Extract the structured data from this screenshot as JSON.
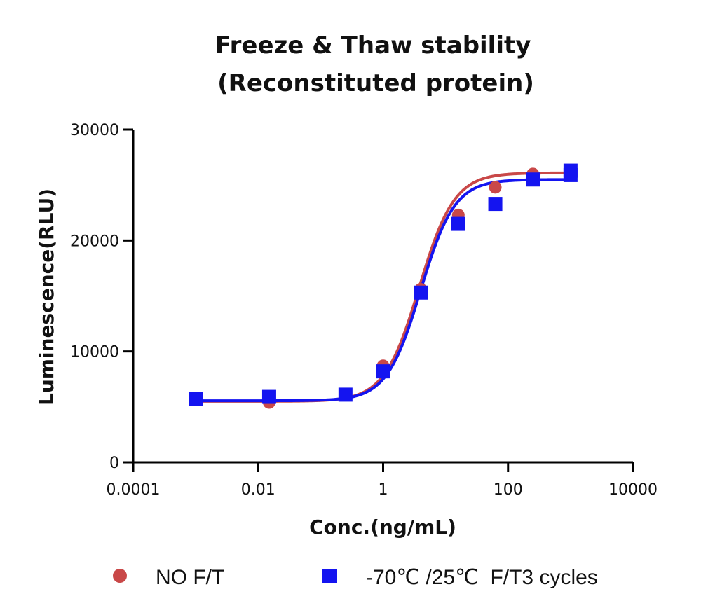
{
  "chart_data": {
    "type": "scatter",
    "title": [
      "Freeze & Thaw stability",
      "(Reconstituted protein)"
    ],
    "xlabel": "Conc.(ng/mL)",
    "ylabel": "Luminescence(RLU)",
    "x_scale": "log",
    "xlim": [
      0.0001,
      10000
    ],
    "ylim": [
      0,
      30000
    ],
    "x_ticks": [
      {
        "value": 0.0001,
        "label": "0.0001"
      },
      {
        "value": 0.01,
        "label": "0.01"
      },
      {
        "value": 1,
        "label": "1"
      },
      {
        "value": 100,
        "label": "100"
      },
      {
        "value": 10000,
        "label": "10000"
      }
    ],
    "y_ticks": [
      {
        "value": 0,
        "label": "0"
      },
      {
        "value": 10000,
        "label": "10000"
      },
      {
        "value": 20000,
        "label": "20000"
      },
      {
        "value": 30000,
        "label": "30000"
      }
    ],
    "legend_position": "bottom",
    "series": [
      {
        "name": "NO F/T",
        "marker": "circle",
        "color": "#c94848",
        "x": [
          0.001,
          0.015,
          0.25,
          1,
          4,
          16,
          62.5,
          250,
          1000
        ],
        "y": [
          5700,
          5400,
          6100,
          8700,
          15600,
          22300,
          24800,
          26000,
          26100
        ],
        "fit": {
          "bottom": 5500,
          "top": 26100,
          "ec50": 3.8,
          "hill": 1.55
        }
      },
      {
        "name": "-70℃ /25℃  F/T3 cycles",
        "marker": "square",
        "color": "#1414f0",
        "x": [
          0.001,
          0.015,
          0.25,
          1,
          4,
          16,
          62.5,
          250,
          1000,
          1000
        ],
        "y": [
          5700,
          5900,
          6100,
          8200,
          15300,
          21500,
          23300,
          25500,
          25900,
          26300
        ],
        "fit": {
          "bottom": 5550,
          "top": 25500,
          "ec50": 4.0,
          "hill": 1.6
        }
      }
    ]
  }
}
